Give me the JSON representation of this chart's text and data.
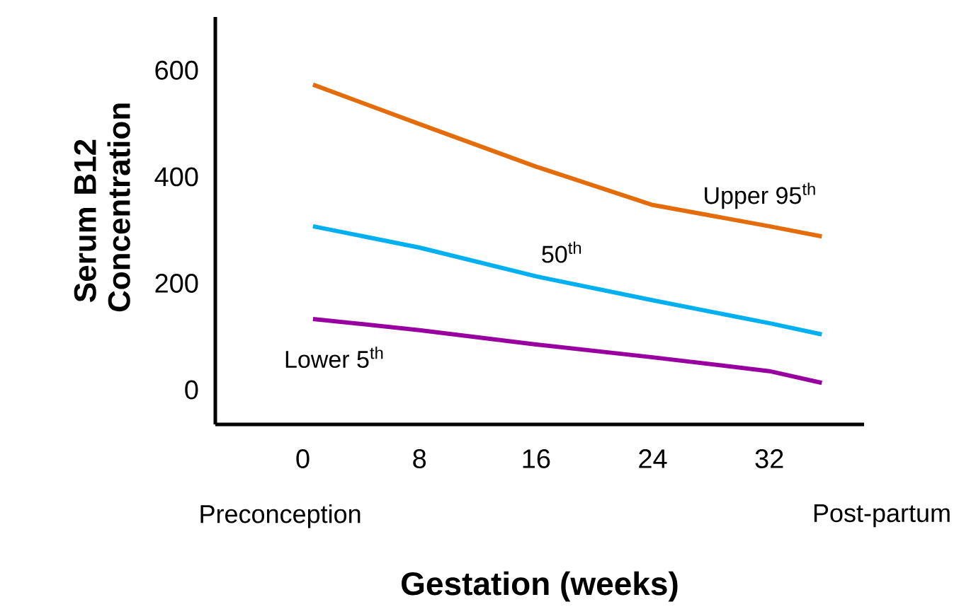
{
  "chart_data": {
    "type": "line",
    "xlabel": "Gestation (weeks)",
    "ylabel": "Serum B12 Concentration",
    "x": [
      0.7,
      8,
      16,
      24,
      32,
      35.6
    ],
    "series": [
      {
        "name": "Upper 95$^{th}$",
        "color": "#e46c0a",
        "values": [
          573,
          499,
          419,
          347,
          307,
          288
        ]
      },
      {
        "name": "50$^{th}$",
        "color": "#00b0f0",
        "values": [
          307,
          267,
          213,
          168,
          125,
          104
        ]
      },
      {
        "name": "Lower 5$^{th}$",
        "color": "#9900a0",
        "values": [
          133,
          112,
          85,
          61,
          35,
          13
        ]
      }
    ],
    "xlim": [
      -6,
      38.5
    ],
    "ylim": [
      -65,
      700
    ],
    "xticks": [
      0,
      8,
      16,
      24,
      32
    ],
    "yticks": [
      0,
      200,
      400,
      600
    ],
    "annotations": [
      "Preconception",
      "Post-partum"
    ],
    "grid": false,
    "legend": false,
    "marker": "none",
    "line_style": "solid"
  }
}
